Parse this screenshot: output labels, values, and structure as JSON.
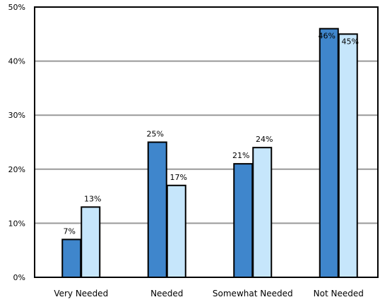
{
  "chart_data": {
    "type": "bar",
    "title": "",
    "xlabel": "",
    "ylabel": "",
    "categories": [
      "Very Needed",
      "Needed",
      "Somewhat Needed",
      "Not Needed"
    ],
    "series": [
      {
        "values": [
          7,
          25,
          21,
          46
        ],
        "labels": [
          "7%",
          "25%",
          "21%",
          "46%"
        ],
        "color": "#3f86cc"
      },
      {
        "values": [
          13,
          17,
          24,
          45
        ],
        "labels": [
          "13%",
          "17%",
          "24%",
          "45%"
        ],
        "color": "#c6e6fb"
      }
    ],
    "ylim": [
      0,
      50
    ],
    "yticks": [
      0,
      10,
      20,
      30,
      40,
      50
    ],
    "ytick_labels": [
      "0%",
      "10%",
      "20%",
      "30%",
      "40%",
      "50%"
    ],
    "grid": true,
    "legend": "none"
  }
}
